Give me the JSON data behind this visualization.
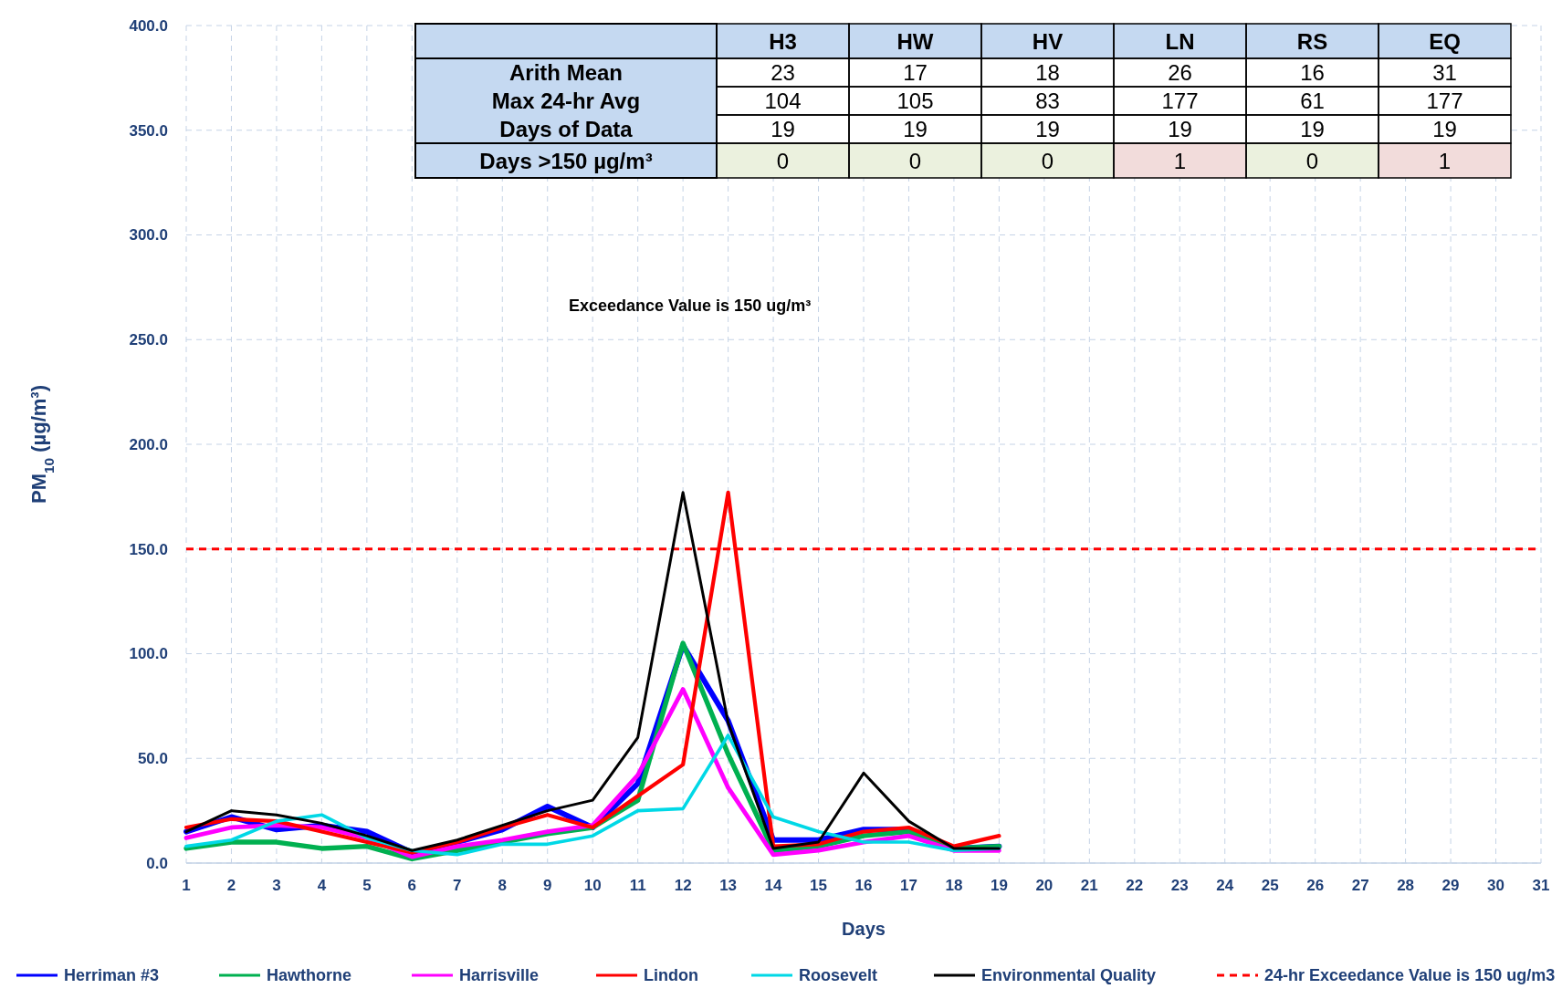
{
  "chart_data": {
    "type": "line",
    "xlabel": "Days",
    "ylabel": "PM$_{10}$ (µg/m³)",
    "x": [
      1,
      2,
      3,
      4,
      5,
      6,
      7,
      8,
      9,
      10,
      11,
      12,
      13,
      14,
      15,
      16,
      17,
      18,
      19
    ],
    "xlim": [
      1,
      31
    ],
    "xticks": [
      1,
      2,
      3,
      4,
      5,
      6,
      7,
      8,
      9,
      10,
      11,
      12,
      13,
      14,
      15,
      16,
      17,
      18,
      19,
      20,
      21,
      22,
      23,
      24,
      25,
      26,
      27,
      28,
      29,
      30,
      31
    ],
    "ylim": [
      0,
      400
    ],
    "yticks": [
      {
        "value": 0,
        "label": "0.0"
      },
      {
        "value": 50,
        "label": "50.0"
      },
      {
        "value": 100,
        "label": "100.0"
      },
      {
        "value": 150,
        "label": "150.0"
      },
      {
        "value": 200,
        "label": "200.0"
      },
      {
        "value": 250,
        "label": "250.0"
      },
      {
        "value": 300,
        "label": "300.0"
      },
      {
        "value": 350,
        "label": "350.0"
      },
      {
        "value": 400,
        "label": "400.0"
      }
    ],
    "grid": true,
    "legend": "bottom",
    "marker": "none",
    "line_style": "solid",
    "series": [
      {
        "name": "Herriman #3",
        "color": "#0000ff",
        "values": [
          15,
          22,
          16,
          18,
          15,
          5,
          10,
          16,
          27,
          17,
          38,
          104,
          68,
          11,
          11,
          16,
          16,
          7,
          8
        ]
      },
      {
        "name": "Hawthorne",
        "color": "#00b050",
        "values": [
          7,
          10,
          10,
          7,
          8,
          2,
          6,
          10,
          14,
          17,
          30,
          105,
          52,
          6,
          8,
          13,
          15,
          7,
          8
        ]
      },
      {
        "name": "Harrisville",
        "color": "#ff00ff",
        "values": [
          12,
          17,
          18,
          17,
          12,
          3,
          8,
          11,
          15,
          18,
          42,
          83,
          36,
          4,
          6,
          10,
          13,
          6,
          6
        ]
      },
      {
        "name": "Lindon",
        "color": "#ff0000",
        "values": [
          17,
          21,
          20,
          15,
          10,
          5,
          10,
          17,
          23,
          17,
          32,
          47,
          177,
          8,
          9,
          15,
          17,
          8,
          13
        ]
      },
      {
        "name": "Roosevelt",
        "color": "#00d8e6",
        "values": [
          8,
          11,
          20,
          23,
          12,
          6,
          4,
          9,
          9,
          13,
          25,
          26,
          61,
          22,
          15,
          10,
          10,
          6,
          7
        ]
      },
      {
        "name": "Environmental Quality",
        "color": "#000000",
        "values": [
          15,
          25,
          23,
          19,
          13,
          6,
          11,
          18,
          25,
          30,
          60,
          177,
          67,
          7,
          10,
          43,
          20,
          7,
          7
        ]
      }
    ],
    "ref_lines": [
      {
        "axis": "y",
        "value": 150,
        "label": "24-hr Exceedance Value is 150 ug/m3",
        "color": "#ff0000",
        "line_style": "dashed"
      }
    ],
    "annotations": [
      "Exceedance Value is 150 ug/m³",
      "H3",
      "HW",
      "HV",
      "LN",
      "RS",
      "EQ",
      "Arith Mean",
      "23",
      "17",
      "18",
      "26",
      "16",
      "31",
      "Max 24-hr Avg",
      "104",
      "105",
      "83",
      "177",
      "61",
      "177",
      "Days of Data",
      "19",
      "19",
      "19",
      "19",
      "19",
      "19",
      "Days >150 µg/m³",
      "0",
      "0",
      "0",
      "1",
      "0",
      "1"
    ]
  }
}
